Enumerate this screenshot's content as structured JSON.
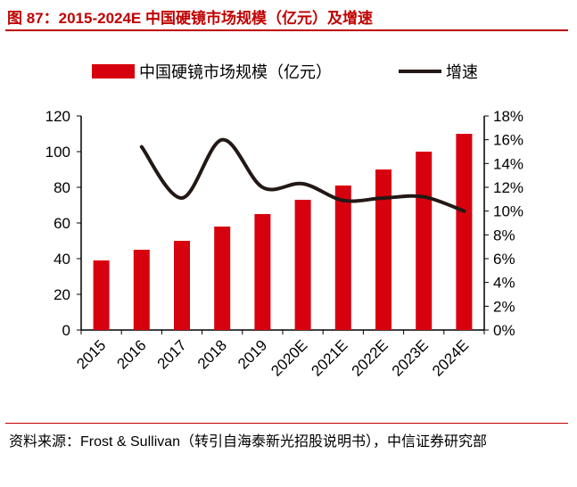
{
  "title": "图 87：2015-2024E 中国硬镜市场规模（亿元）及增速",
  "source": "资料来源：Frost & Sullivan（转引自海泰新光招股说明书），中信证券研究部",
  "chart_data": {
    "type": "bar+line",
    "categories": [
      "2015",
      "2016",
      "2017",
      "2018",
      "2019",
      "2020E",
      "2021E",
      "2022E",
      "2023E",
      "2024E"
    ],
    "series": [
      {
        "name": "中国硬镜市场规模（亿元）",
        "type": "bar",
        "axis": "left",
        "color": "#d7000f",
        "values": [
          39,
          45,
          50,
          58,
          65,
          73,
          81,
          90,
          100,
          110
        ]
      },
      {
        "name": "增速",
        "type": "line",
        "axis": "right",
        "color": "#231815",
        "values": [
          null,
          15.4,
          11.1,
          16.0,
          12.0,
          12.3,
          10.9,
          11.1,
          11.2,
          10.0
        ]
      }
    ],
    "yleft": {
      "ylim": [
        0,
        120
      ],
      "ticks": [
        "0",
        "20",
        "40",
        "60",
        "80",
        "100",
        "120"
      ]
    },
    "yright": {
      "ylim": [
        0,
        18
      ],
      "ticks": [
        "0%",
        "2%",
        "4%",
        "6%",
        "8%",
        "10%",
        "12%",
        "14%",
        "16%",
        "18%"
      ]
    },
    "legend": "top",
    "grid": false
  }
}
